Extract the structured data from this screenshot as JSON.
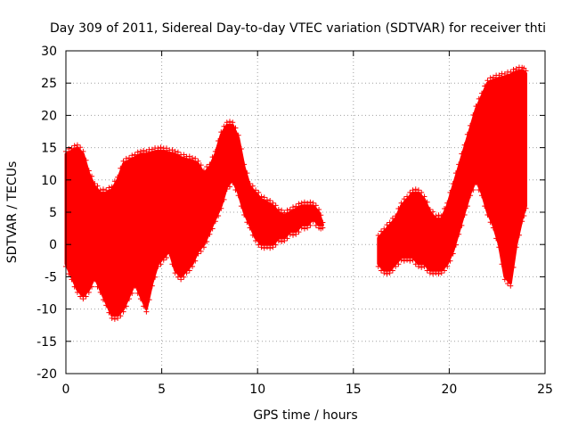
{
  "chart_data": {
    "type": "scatter",
    "title": "Day 309 of 2011, Sidereal Day-to-day VTEC variation (SDTVAR) for receiver thti",
    "xlabel": "GPS time / hours",
    "ylabel": "SDTVAR / TECUs",
    "xlim": [
      0,
      25
    ],
    "ylim": [
      -20,
      30
    ],
    "xticks": [
      0,
      5,
      10,
      15,
      20,
      25
    ],
    "yticks": [
      -20,
      -15,
      -10,
      -5,
      0,
      5,
      10,
      15,
      20,
      25,
      30
    ],
    "grid": true,
    "marker": "+",
    "color": "#ff0000",
    "series": [
      {
        "name": "SDTVAR",
        "bands": [
          {
            "x": [
              0.0,
              0.3,
              0.6,
              0.9,
              1.2,
              1.5,
              1.8,
              2.1,
              2.4,
              2.7,
              3.0,
              3.3,
              3.6,
              3.9,
              4.2,
              4.5,
              4.8,
              5.1,
              5.4,
              5.7,
              6.0,
              6.3,
              6.6,
              6.9,
              7.2,
              7.5,
              7.8,
              8.1,
              8.4,
              8.7,
              9.0,
              9.3,
              9.6,
              9.9,
              10.2,
              10.5,
              10.8,
              11.1,
              11.4,
              11.7,
              12.0,
              12.3,
              12.6,
              12.9,
              13.2,
              13.4
            ],
            "low": [
              -3,
              -5,
              -7,
              -8,
              -7,
              -5,
              -7,
              -9,
              -11,
              -11,
              -10,
              -8,
              -6,
              -8,
              -10,
              -6,
              -3,
              -2,
              -1,
              -4,
              -5,
              -4,
              -3,
              -1,
              0,
              2,
              4,
              6,
              9,
              10,
              8,
              5,
              3,
              1,
              0,
              0,
              0,
              1,
              1,
              2,
              2,
              3,
              3,
              4,
              3,
              3
            ],
            "high": [
              14,
              14.5,
              15,
              14,
              11,
              9,
              8,
              8,
              8.5,
              10,
              12.5,
              13,
              13.5,
              14,
              14,
              14.3,
              14.5,
              14.5,
              14.2,
              14,
              13.5,
              13.2,
              13,
              12.5,
              11,
              12,
              14,
              17,
              18.5,
              18.5,
              16.5,
              12,
              9,
              8,
              7,
              6.5,
              6,
              5,
              4.5,
              5,
              5.5,
              6,
              6,
              6,
              5,
              3
            ]
          },
          {
            "x": [
              16.3,
              16.6,
              16.9,
              17.2,
              17.5,
              17.8,
              18.1,
              18.4,
              18.7,
              19.0,
              19.3,
              19.6,
              19.9,
              20.2,
              20.5,
              20.8,
              21.1,
              21.4,
              21.7,
              22.0,
              22.3,
              22.6,
              22.9,
              23.2,
              23.5,
              23.8,
              24.0
            ],
            "low": [
              -3,
              -4,
              -4,
              -3,
              -2,
              -2,
              -2,
              -3,
              -3,
              -4,
              -4,
              -4,
              -3,
              -1,
              2,
              5,
              8,
              10,
              8,
              5,
              3,
              0,
              -5,
              -6,
              0,
              4,
              6
            ],
            "high": [
              1,
              2,
              3,
              4,
              6,
              7,
              8,
              8,
              7,
              5,
              4,
              4,
              6,
              9,
              12,
              15,
              18,
              21,
              23,
              25,
              25.5,
              25.8,
              26,
              26.3,
              26.8,
              27,
              26.5
            ]
          }
        ]
      }
    ]
  }
}
